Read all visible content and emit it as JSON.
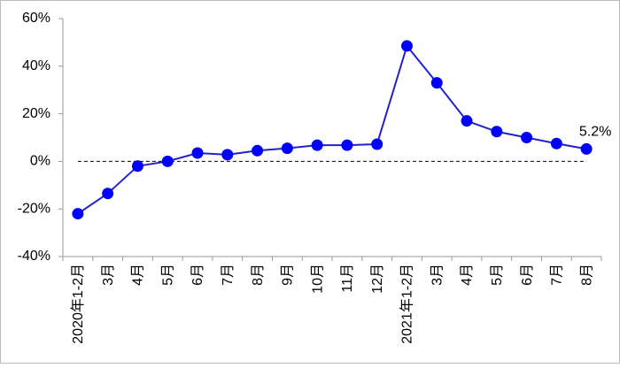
{
  "chart_data": {
    "type": "line",
    "categories": [
      "2020年1-2月",
      "3月",
      "4月",
      "5月",
      "6月",
      "7月",
      "8月",
      "9月",
      "10月",
      "11月",
      "12月",
      "2021年1-2月",
      "3月",
      "4月",
      "5月",
      "6月",
      "7月",
      "8月"
    ],
    "values": [
      -22,
      -13.5,
      -2,
      0,
      3.5,
      2.8,
      4.5,
      5.5,
      6.8,
      6.8,
      7.2,
      48.5,
      33,
      17,
      12.5,
      10,
      7.5,
      5.2
    ],
    "value_labels": [
      null,
      null,
      null,
      null,
      null,
      null,
      null,
      null,
      null,
      null,
      null,
      null,
      null,
      null,
      null,
      null,
      null,
      "5.2%"
    ],
    "color": "#0000ff",
    "line_color": "#2222cc",
    "ylim": [
      -40,
      60
    ],
    "yticks": [
      {
        "value": -40,
        "label": "-40%"
      },
      {
        "value": -20,
        "label": "-20%"
      },
      {
        "value": 0,
        "label": "0%"
      },
      {
        "value": 20,
        "label": "20%"
      },
      {
        "value": 40,
        "label": "40%"
      },
      {
        "value": 60,
        "label": "60%"
      }
    ]
  }
}
